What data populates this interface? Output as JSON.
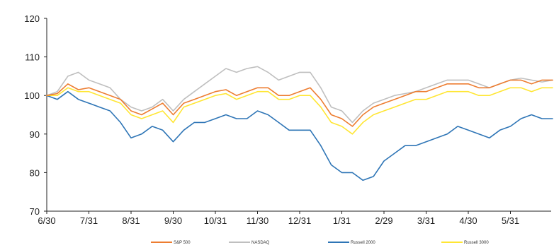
{
  "chart_data": {
    "type": "line",
    "title": "",
    "xlabel": "",
    "ylabel": "",
    "ylim": [
      70,
      120
    ],
    "y_ticks": [
      70,
      80,
      90,
      100,
      110,
      120
    ],
    "x_range": [
      0,
      12
    ],
    "x_ticks": [
      {
        "x": 0,
        "label": "6/30"
      },
      {
        "x": 1,
        "label": "7/31"
      },
      {
        "x": 2,
        "label": "8/31"
      },
      {
        "x": 3,
        "label": "9/30"
      },
      {
        "x": 4,
        "label": "10/31"
      },
      {
        "x": 5,
        "label": "11/30"
      },
      {
        "x": 6,
        "label": "12/31"
      },
      {
        "x": 7,
        "label": "1/31"
      },
      {
        "x": 8,
        "label": "2/29"
      },
      {
        "x": 9,
        "label": "3/31"
      },
      {
        "x": 10,
        "label": "4/30"
      },
      {
        "x": 11,
        "label": "5/31"
      }
    ],
    "grid": false,
    "legend_position": "bottom",
    "series": [
      {
        "name": "S&P 500",
        "color": "#ed7d31",
        "points": [
          [
            0,
            100
          ],
          [
            0.25,
            100.5
          ],
          [
            0.5,
            103
          ],
          [
            0.75,
            101.5
          ],
          [
            1,
            102
          ],
          [
            1.25,
            101
          ],
          [
            1.5,
            100
          ],
          [
            1.75,
            99
          ],
          [
            2,
            96
          ],
          [
            2.25,
            95
          ],
          [
            2.5,
            96.5
          ],
          [
            2.75,
            98
          ],
          [
            3,
            95
          ],
          [
            3.25,
            98
          ],
          [
            3.5,
            99
          ],
          [
            3.75,
            100
          ],
          [
            4,
            101
          ],
          [
            4.25,
            101.5
          ],
          [
            4.5,
            100
          ],
          [
            4.75,
            101
          ],
          [
            5,
            102
          ],
          [
            5.25,
            102
          ],
          [
            5.5,
            100
          ],
          [
            5.75,
            100
          ],
          [
            6,
            101
          ],
          [
            6.25,
            102
          ],
          [
            6.5,
            99
          ],
          [
            6.75,
            95
          ],
          [
            7,
            94
          ],
          [
            7.25,
            92
          ],
          [
            7.5,
            95
          ],
          [
            7.75,
            97
          ],
          [
            8,
            98
          ],
          [
            8.25,
            99
          ],
          [
            8.5,
            100
          ],
          [
            8.75,
            101
          ],
          [
            9,
            101
          ],
          [
            9.25,
            102
          ],
          [
            9.5,
            103
          ],
          [
            9.75,
            103
          ],
          [
            10,
            103
          ],
          [
            10.25,
            102
          ],
          [
            10.5,
            102
          ],
          [
            10.75,
            103
          ],
          [
            11,
            104
          ],
          [
            11.25,
            104
          ],
          [
            11.5,
            103
          ],
          [
            11.75,
            104
          ],
          [
            12,
            104
          ]
        ]
      },
      {
        "name": "NASDAQ",
        "color": "#bfbfbf",
        "points": [
          [
            0,
            100
          ],
          [
            0.25,
            101
          ],
          [
            0.5,
            105
          ],
          [
            0.75,
            106
          ],
          [
            1,
            104
          ],
          [
            1.25,
            103
          ],
          [
            1.5,
            102
          ],
          [
            1.75,
            99
          ],
          [
            2,
            97
          ],
          [
            2.25,
            96
          ],
          [
            2.5,
            97
          ],
          [
            2.75,
            99
          ],
          [
            3,
            96
          ],
          [
            3.25,
            99
          ],
          [
            3.5,
            101
          ],
          [
            3.75,
            103
          ],
          [
            4,
            105
          ],
          [
            4.25,
            107
          ],
          [
            4.5,
            106
          ],
          [
            4.75,
            107
          ],
          [
            5,
            107.5
          ],
          [
            5.25,
            106
          ],
          [
            5.5,
            104
          ],
          [
            5.75,
            105
          ],
          [
            6,
            106
          ],
          [
            6.25,
            106
          ],
          [
            6.5,
            102
          ],
          [
            6.75,
            97
          ],
          [
            7,
            96
          ],
          [
            7.25,
            93
          ],
          [
            7.5,
            96
          ],
          [
            7.75,
            98
          ],
          [
            8,
            99
          ],
          [
            8.25,
            100
          ],
          [
            8.5,
            100.5
          ],
          [
            8.75,
            101
          ],
          [
            9,
            102
          ],
          [
            9.25,
            103
          ],
          [
            9.5,
            104
          ],
          [
            9.75,
            104
          ],
          [
            10,
            104
          ],
          [
            10.25,
            103
          ],
          [
            10.5,
            102
          ],
          [
            10.75,
            103
          ],
          [
            11,
            104
          ],
          [
            11.25,
            104.5
          ],
          [
            11.5,
            104
          ],
          [
            11.75,
            103.5
          ],
          [
            12,
            104
          ]
        ]
      },
      {
        "name": "Russell 2000",
        "color": "#2e75b6",
        "points": [
          [
            0,
            100
          ],
          [
            0.25,
            99
          ],
          [
            0.5,
            101
          ],
          [
            0.75,
            99
          ],
          [
            1,
            98
          ],
          [
            1.25,
            97
          ],
          [
            1.5,
            96
          ],
          [
            1.75,
            93
          ],
          [
            2,
            89
          ],
          [
            2.25,
            90
          ],
          [
            2.5,
            92
          ],
          [
            2.75,
            91
          ],
          [
            3,
            88
          ],
          [
            3.25,
            91
          ],
          [
            3.5,
            93
          ],
          [
            3.75,
            93
          ],
          [
            4,
            94
          ],
          [
            4.25,
            95
          ],
          [
            4.5,
            94
          ],
          [
            4.75,
            94
          ],
          [
            5,
            96
          ],
          [
            5.25,
            95
          ],
          [
            5.5,
            93
          ],
          [
            5.75,
            91
          ],
          [
            6,
            91
          ],
          [
            6.25,
            91
          ],
          [
            6.5,
            87
          ],
          [
            6.75,
            82
          ],
          [
            7,
            80
          ],
          [
            7.25,
            80
          ],
          [
            7.5,
            78
          ],
          [
            7.75,
            79
          ],
          [
            8,
            83
          ],
          [
            8.25,
            85
          ],
          [
            8.5,
            87
          ],
          [
            8.75,
            87
          ],
          [
            9,
            88
          ],
          [
            9.25,
            89
          ],
          [
            9.5,
            90
          ],
          [
            9.75,
            92
          ],
          [
            10,
            91
          ],
          [
            10.25,
            90
          ],
          [
            10.5,
            89
          ],
          [
            10.75,
            91
          ],
          [
            11,
            92
          ],
          [
            11.25,
            94
          ],
          [
            11.5,
            95
          ],
          [
            11.75,
            94
          ],
          [
            12,
            94
          ]
        ]
      },
      {
        "name": "Russell 3000",
        "color": "#ffe633",
        "points": [
          [
            0,
            100
          ],
          [
            0.25,
            100
          ],
          [
            0.5,
            102
          ],
          [
            0.75,
            101
          ],
          [
            1,
            101
          ],
          [
            1.25,
            100
          ],
          [
            1.5,
            99
          ],
          [
            1.75,
            98
          ],
          [
            2,
            95
          ],
          [
            2.25,
            94
          ],
          [
            2.5,
            95
          ],
          [
            2.75,
            96
          ],
          [
            3,
            93
          ],
          [
            3.25,
            97
          ],
          [
            3.5,
            98
          ],
          [
            3.75,
            99
          ],
          [
            4,
            100
          ],
          [
            4.25,
            100.5
          ],
          [
            4.5,
            99
          ],
          [
            4.75,
            100
          ],
          [
            5,
            101
          ],
          [
            5.25,
            101
          ],
          [
            5.5,
            99
          ],
          [
            5.75,
            99
          ],
          [
            6,
            100
          ],
          [
            6.25,
            100
          ],
          [
            6.5,
            97
          ],
          [
            6.75,
            93
          ],
          [
            7,
            92
          ],
          [
            7.25,
            90
          ],
          [
            7.5,
            93
          ],
          [
            7.75,
            95
          ],
          [
            8,
            96
          ],
          [
            8.25,
            97
          ],
          [
            8.5,
            98
          ],
          [
            8.75,
            99
          ],
          [
            9,
            99
          ],
          [
            9.25,
            100
          ],
          [
            9.5,
            101
          ],
          [
            9.75,
            101
          ],
          [
            10,
            101
          ],
          [
            10.25,
            100
          ],
          [
            10.5,
            100
          ],
          [
            10.75,
            101
          ],
          [
            11,
            102
          ],
          [
            11.25,
            102
          ],
          [
            11.5,
            101
          ],
          [
            11.75,
            102
          ],
          [
            12,
            102
          ]
        ]
      }
    ]
  }
}
